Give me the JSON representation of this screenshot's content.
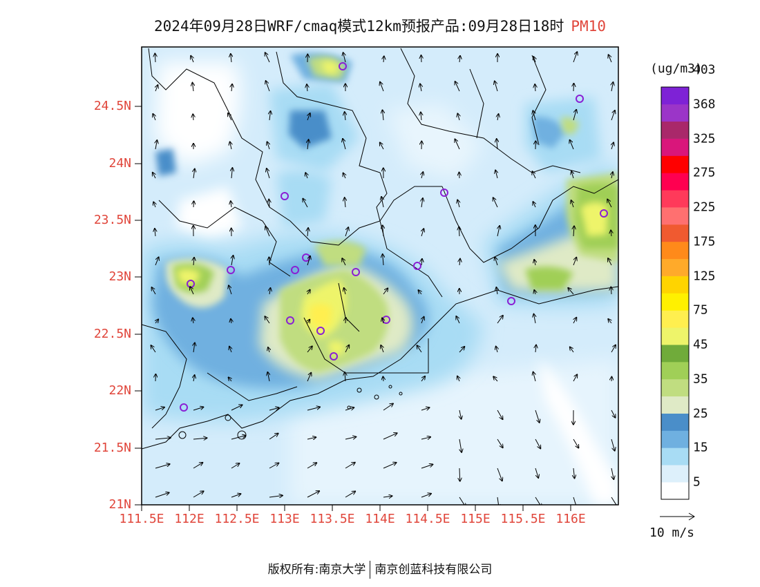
{
  "title": {
    "main": "2024年09月28日WRF/cmaq模式12km预报产品:09月28日18时",
    "pollutant": "PM10"
  },
  "map": {
    "lat_labels": [
      "24.5N",
      "24N",
      "23.5N",
      "23N",
      "22.5N",
      "22N",
      "21.5N",
      "21N"
    ],
    "lon_labels": [
      "111.5E",
      "112E",
      "112.5E",
      "113E",
      "113.5E",
      "114E",
      "114.5E",
      "115E",
      "115.5E",
      "116E"
    ]
  },
  "colorbar": {
    "units": "(ug/m3)",
    "colors": [
      "#ffffff",
      "#ddf0fb",
      "#a8dcf4",
      "#6fb0e0",
      "#4a8ec9",
      "#dfeac6",
      "#c0dd80",
      "#a0cf57",
      "#70ab3a",
      "#eef46a",
      "#ffef4f",
      "#fff100",
      "#ffd400",
      "#ffaa2a",
      "#ff8a1a",
      "#f05a30",
      "#ff7070",
      "#ff3a5a",
      "#ff0050",
      "#ff0000",
      "#d9167b",
      "#a9286a",
      "#9b35c8",
      "#7e22d6"
    ],
    "labels": [
      "5",
      "15",
      "25",
      "35",
      "45",
      "75",
      "125",
      "175",
      "225",
      "275",
      "325",
      "368",
      "403"
    ]
  },
  "vector_reference": {
    "label": "10 m/s"
  },
  "footer": {
    "left": "版权所有:南京大学",
    "right": "南京创蓝科技有限公司"
  }
}
